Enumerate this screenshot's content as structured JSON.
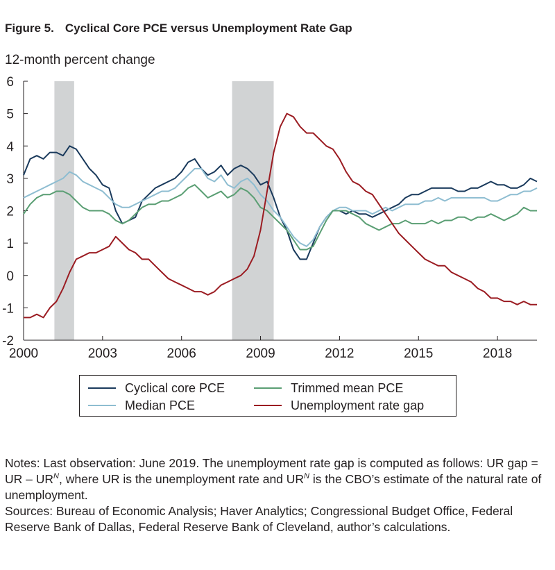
{
  "figure": {
    "number": "Figure 5.",
    "title": "Cyclical Core PCE versus Unemployment Rate Gap",
    "y_unit": "12-month percent change"
  },
  "notes": {
    "line1_a": "Notes: Last observation: June 2019. The unemployment rate gap is computed as follows: UR gap = UR – UR",
    "sup1": "N",
    "line1_b": ", where UR is the unemployment rate and UR",
    "sup2": "N",
    "line1_c": " is the CBO’s estimate of the natural rate of unemployment.",
    "sources": "Sources: Bureau of Economic Analysis; Haver Analytics; Congressional Budget Office, Federal Reserve Bank of Dallas, Federal Reserve Bank of Cleveland, author’s calculations."
  },
  "colors": {
    "cyclical": "#1a3a5c",
    "median": "#8ebdd1",
    "trimmed": "#5a9e73",
    "gap": "#9b1c22",
    "recession": "#d1d3d4",
    "axis": "#231f20"
  },
  "chart_data": {
    "type": "line",
    "title": "Cyclical Core PCE versus Unemployment Rate Gap",
    "ylabel": "12-month percent change",
    "xlim": [
      2000.0,
      2019.5
    ],
    "ylim": [
      -2,
      6
    ],
    "xticks": [
      2000,
      2003,
      2006,
      2009,
      2012,
      2015,
      2018
    ],
    "yticks": [
      -2,
      -1,
      0,
      1,
      2,
      3,
      4,
      5,
      6
    ],
    "grid": false,
    "legend_position": "bottom",
    "recessions": [
      [
        2001.17,
        2001.92
      ],
      [
        2007.92,
        2009.5
      ]
    ],
    "series": [
      {
        "name": "Cyclical core PCE",
        "key": "cyclical",
        "x": [
          2000.0,
          2000.25,
          2000.5,
          2000.75,
          2001.0,
          2001.25,
          2001.5,
          2001.75,
          2002.0,
          2002.25,
          2002.5,
          2002.75,
          2003.0,
          2003.25,
          2003.5,
          2003.75,
          2004.0,
          2004.25,
          2004.5,
          2004.75,
          2005.0,
          2005.25,
          2005.5,
          2005.75,
          2006.0,
          2006.25,
          2006.5,
          2006.75,
          2007.0,
          2007.25,
          2007.5,
          2007.75,
          2008.0,
          2008.25,
          2008.5,
          2008.75,
          2009.0,
          2009.25,
          2009.5,
          2009.75,
          2010.0,
          2010.25,
          2010.5,
          2010.75,
          2011.0,
          2011.25,
          2011.5,
          2011.75,
          2012.0,
          2012.25,
          2012.5,
          2012.75,
          2013.0,
          2013.25,
          2013.5,
          2013.75,
          2014.0,
          2014.25,
          2014.5,
          2014.75,
          2015.0,
          2015.25,
          2015.5,
          2015.75,
          2016.0,
          2016.25,
          2016.5,
          2016.75,
          2017.0,
          2017.25,
          2017.5,
          2017.75,
          2018.0,
          2018.25,
          2018.5,
          2018.75,
          2019.0,
          2019.25,
          2019.5
        ],
        "y": [
          3.1,
          3.6,
          3.7,
          3.6,
          3.8,
          3.8,
          3.7,
          4.0,
          3.9,
          3.6,
          3.3,
          3.1,
          2.8,
          2.7,
          2.0,
          1.6,
          1.7,
          1.8,
          2.3,
          2.5,
          2.7,
          2.8,
          2.9,
          3.0,
          3.2,
          3.5,
          3.6,
          3.3,
          3.1,
          3.2,
          3.4,
          3.1,
          3.3,
          3.4,
          3.3,
          3.1,
          2.8,
          2.9,
          2.4,
          1.8,
          1.4,
          0.8,
          0.5,
          0.5,
          1.0,
          1.5,
          1.8,
          2.0,
          2.0,
          1.9,
          2.0,
          1.9,
          1.9,
          1.8,
          1.9,
          2.0,
          2.1,
          2.2,
          2.4,
          2.5,
          2.5,
          2.6,
          2.7,
          2.7,
          2.7,
          2.7,
          2.6,
          2.6,
          2.7,
          2.7,
          2.8,
          2.9,
          2.8,
          2.8,
          2.7,
          2.7,
          2.8,
          3.0,
          2.9
        ]
      },
      {
        "name": "Median PCE",
        "key": "median",
        "x": [
          2000.0,
          2000.25,
          2000.5,
          2000.75,
          2001.0,
          2001.25,
          2001.5,
          2001.75,
          2002.0,
          2002.25,
          2002.5,
          2002.75,
          2003.0,
          2003.25,
          2003.5,
          2003.75,
          2004.0,
          2004.25,
          2004.5,
          2004.75,
          2005.0,
          2005.25,
          2005.5,
          2005.75,
          2006.0,
          2006.25,
          2006.5,
          2006.75,
          2007.0,
          2007.25,
          2007.5,
          2007.75,
          2008.0,
          2008.25,
          2008.5,
          2008.75,
          2009.0,
          2009.25,
          2009.5,
          2009.75,
          2010.0,
          2010.25,
          2010.5,
          2010.75,
          2011.0,
          2011.25,
          2011.5,
          2011.75,
          2012.0,
          2012.25,
          2012.5,
          2012.75,
          2013.0,
          2013.25,
          2013.5,
          2013.75,
          2014.0,
          2014.25,
          2014.5,
          2014.75,
          2015.0,
          2015.25,
          2015.5,
          2015.75,
          2016.0,
          2016.25,
          2016.5,
          2016.75,
          2017.0,
          2017.25,
          2017.5,
          2017.75,
          2018.0,
          2018.25,
          2018.5,
          2018.75,
          2019.0,
          2019.25,
          2019.5
        ],
        "y": [
          2.4,
          2.5,
          2.6,
          2.7,
          2.8,
          2.9,
          3.0,
          3.2,
          3.1,
          2.9,
          2.8,
          2.7,
          2.6,
          2.4,
          2.2,
          2.1,
          2.1,
          2.2,
          2.3,
          2.4,
          2.5,
          2.6,
          2.6,
          2.7,
          2.9,
          3.1,
          3.3,
          3.3,
          3.0,
          2.9,
          3.1,
          2.8,
          2.7,
          2.9,
          3.0,
          2.8,
          2.5,
          2.3,
          2.0,
          1.8,
          1.5,
          1.2,
          1.0,
          0.9,
          1.1,
          1.5,
          1.8,
          2.0,
          2.1,
          2.1,
          2.0,
          2.0,
          2.0,
          1.9,
          2.0,
          2.1,
          2.0,
          2.1,
          2.2,
          2.2,
          2.2,
          2.3,
          2.3,
          2.4,
          2.3,
          2.4,
          2.4,
          2.4,
          2.4,
          2.4,
          2.4,
          2.3,
          2.3,
          2.4,
          2.5,
          2.5,
          2.6,
          2.6,
          2.7
        ]
      },
      {
        "name": "Trimmed mean PCE",
        "key": "trimmed",
        "x": [
          2000.0,
          2000.25,
          2000.5,
          2000.75,
          2001.0,
          2001.25,
          2001.5,
          2001.75,
          2002.0,
          2002.25,
          2002.5,
          2002.75,
          2003.0,
          2003.25,
          2003.5,
          2003.75,
          2004.0,
          2004.25,
          2004.5,
          2004.75,
          2005.0,
          2005.25,
          2005.5,
          2005.75,
          2006.0,
          2006.25,
          2006.5,
          2006.75,
          2007.0,
          2007.25,
          2007.5,
          2007.75,
          2008.0,
          2008.25,
          2008.5,
          2008.75,
          2009.0,
          2009.25,
          2009.5,
          2009.75,
          2010.0,
          2010.25,
          2010.5,
          2010.75,
          2011.0,
          2011.25,
          2011.5,
          2011.75,
          2012.0,
          2012.25,
          2012.5,
          2012.75,
          2013.0,
          2013.25,
          2013.5,
          2013.75,
          2014.0,
          2014.25,
          2014.5,
          2014.75,
          2015.0,
          2015.25,
          2015.5,
          2015.75,
          2016.0,
          2016.25,
          2016.5,
          2016.75,
          2017.0,
          2017.25,
          2017.5,
          2017.75,
          2018.0,
          2018.25,
          2018.5,
          2018.75,
          2019.0,
          2019.25,
          2019.5
        ],
        "y": [
          1.9,
          2.2,
          2.4,
          2.5,
          2.5,
          2.6,
          2.6,
          2.5,
          2.3,
          2.1,
          2.0,
          2.0,
          2.0,
          1.9,
          1.7,
          1.6,
          1.7,
          1.9,
          2.1,
          2.2,
          2.2,
          2.3,
          2.3,
          2.4,
          2.5,
          2.7,
          2.8,
          2.6,
          2.4,
          2.5,
          2.6,
          2.4,
          2.5,
          2.7,
          2.6,
          2.4,
          2.1,
          2.0,
          1.8,
          1.6,
          1.4,
          1.1,
          0.8,
          0.8,
          0.9,
          1.3,
          1.7,
          2.0,
          2.0,
          2.0,
          1.9,
          1.8,
          1.6,
          1.5,
          1.4,
          1.5,
          1.6,
          1.6,
          1.7,
          1.6,
          1.6,
          1.6,
          1.7,
          1.6,
          1.7,
          1.7,
          1.8,
          1.8,
          1.7,
          1.8,
          1.8,
          1.9,
          1.8,
          1.7,
          1.8,
          1.9,
          2.1,
          2.0,
          2.0
        ]
      },
      {
        "name": "Unemployment rate gap",
        "key": "gap",
        "x": [
          2000.0,
          2000.25,
          2000.5,
          2000.75,
          2001.0,
          2001.25,
          2001.5,
          2001.75,
          2002.0,
          2002.25,
          2002.5,
          2002.75,
          2003.0,
          2003.25,
          2003.5,
          2003.75,
          2004.0,
          2004.25,
          2004.5,
          2004.75,
          2005.0,
          2005.25,
          2005.5,
          2005.75,
          2006.0,
          2006.25,
          2006.5,
          2006.75,
          2007.0,
          2007.25,
          2007.5,
          2007.75,
          2008.0,
          2008.25,
          2008.5,
          2008.75,
          2009.0,
          2009.25,
          2009.5,
          2009.75,
          2010.0,
          2010.25,
          2010.5,
          2010.75,
          2011.0,
          2011.25,
          2011.5,
          2011.75,
          2012.0,
          2012.25,
          2012.5,
          2012.75,
          2013.0,
          2013.25,
          2013.5,
          2013.75,
          2014.0,
          2014.25,
          2014.5,
          2014.75,
          2015.0,
          2015.25,
          2015.5,
          2015.75,
          2016.0,
          2016.25,
          2016.5,
          2016.75,
          2017.0,
          2017.25,
          2017.5,
          2017.75,
          2018.0,
          2018.25,
          2018.5,
          2018.75,
          2019.0,
          2019.25,
          2019.5
        ],
        "y": [
          -1.3,
          -1.3,
          -1.2,
          -1.3,
          -1.0,
          -0.8,
          -0.4,
          0.1,
          0.5,
          0.6,
          0.7,
          0.7,
          0.8,
          0.9,
          1.2,
          1.0,
          0.8,
          0.7,
          0.5,
          0.5,
          0.3,
          0.1,
          -0.1,
          -0.2,
          -0.3,
          -0.4,
          -0.5,
          -0.5,
          -0.6,
          -0.5,
          -0.3,
          -0.2,
          -0.1,
          0.0,
          0.2,
          0.6,
          1.4,
          2.6,
          3.8,
          4.6,
          5.0,
          4.9,
          4.6,
          4.4,
          4.4,
          4.2,
          4.0,
          3.9,
          3.6,
          3.2,
          2.9,
          2.8,
          2.6,
          2.5,
          2.2,
          1.9,
          1.6,
          1.3,
          1.1,
          0.9,
          0.7,
          0.5,
          0.4,
          0.3,
          0.3,
          0.1,
          0.0,
          -0.1,
          -0.2,
          -0.4,
          -0.5,
          -0.7,
          -0.7,
          -0.8,
          -0.8,
          -0.9,
          -0.8,
          -0.9,
          -0.9
        ]
      }
    ]
  }
}
